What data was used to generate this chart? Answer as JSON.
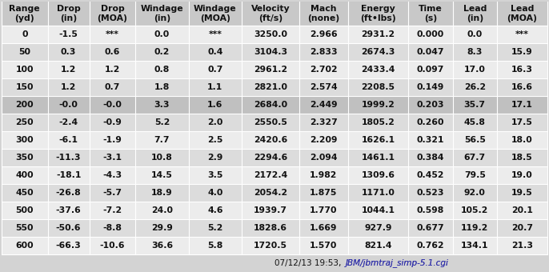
{
  "columns_line1": [
    "Range",
    "Drop",
    "Drop",
    "Windage",
    "Windage",
    "Velocity",
    "Mach",
    "Energy",
    "Time",
    "Lead",
    "Lead"
  ],
  "columns_line2": [
    "(yd)",
    "(in)",
    "(MOA)",
    "(in)",
    "(MOA)",
    "(ft/s)",
    "(none)",
    "(ft•lbs)",
    "(s)",
    "(in)",
    "(MOA)"
  ],
  "rows": [
    [
      "0",
      "-1.5",
      "***",
      "0.0",
      "***",
      "3250.0",
      "2.966",
      "2931.2",
      "0.000",
      "0.0",
      "***"
    ],
    [
      "50",
      "0.3",
      "0.6",
      "0.2",
      "0.4",
      "3104.3",
      "2.833",
      "2674.3",
      "0.047",
      "8.3",
      "15.9"
    ],
    [
      "100",
      "1.2",
      "1.2",
      "0.8",
      "0.7",
      "2961.2",
      "2.702",
      "2433.4",
      "0.097",
      "17.0",
      "16.3"
    ],
    [
      "150",
      "1.2",
      "0.7",
      "1.8",
      "1.1",
      "2821.0",
      "2.574",
      "2208.5",
      "0.149",
      "26.2",
      "16.6"
    ],
    [
      "200",
      "-0.0",
      "-0.0",
      "3.3",
      "1.6",
      "2684.0",
      "2.449",
      "1999.2",
      "0.203",
      "35.7",
      "17.1"
    ],
    [
      "250",
      "-2.4",
      "-0.9",
      "5.2",
      "2.0",
      "2550.5",
      "2.327",
      "1805.2",
      "0.260",
      "45.8",
      "17.5"
    ],
    [
      "300",
      "-6.1",
      "-1.9",
      "7.7",
      "2.5",
      "2420.6",
      "2.209",
      "1626.1",
      "0.321",
      "56.5",
      "18.0"
    ],
    [
      "350",
      "-11.3",
      "-3.1",
      "10.8",
      "2.9",
      "2294.6",
      "2.094",
      "1461.1",
      "0.384",
      "67.7",
      "18.5"
    ],
    [
      "400",
      "-18.1",
      "-4.3",
      "14.5",
      "3.5",
      "2172.4",
      "1.982",
      "1309.6",
      "0.452",
      "79.5",
      "19.0"
    ],
    [
      "450",
      "-26.8",
      "-5.7",
      "18.9",
      "4.0",
      "2054.2",
      "1.875",
      "1171.0",
      "0.523",
      "92.0",
      "19.5"
    ],
    [
      "500",
      "-37.6",
      "-7.2",
      "24.0",
      "4.6",
      "1939.7",
      "1.770",
      "1044.1",
      "0.598",
      "105.2",
      "20.1"
    ],
    [
      "550",
      "-50.6",
      "-8.8",
      "29.9",
      "5.2",
      "1828.6",
      "1.669",
      "927.9",
      "0.677",
      "119.2",
      "20.7"
    ],
    [
      "600",
      "-66.3",
      "-10.6",
      "36.6",
      "5.8",
      "1720.5",
      "1.570",
      "821.4",
      "0.762",
      "134.1",
      "21.3"
    ]
  ],
  "highlight_row": 4,
  "bg_color": "#d3d3d3",
  "header_bg": "#c8c8c8",
  "row_bg_light": "#ececec",
  "row_bg_mid": "#dcdcdc",
  "highlight_bg": "#c0c0c0",
  "cell_text_color": "#111111",
  "grid_color": "#ffffff",
  "footer_text": "07/12/13 19:53, ",
  "footer_link": "JBM/jbmtraj_simp-5.1.cgi",
  "footer_color": "#111111",
  "footer_link_color": "#3333aa",
  "col_widths_rel": [
    52,
    47,
    52,
    60,
    60,
    65,
    55,
    68,
    50,
    50,
    57
  ],
  "font_size": 7.8,
  "header_font_size": 7.8
}
